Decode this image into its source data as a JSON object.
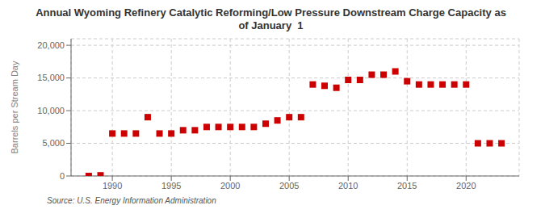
{
  "chart_data": {
    "type": "scatter",
    "title": "Annual Wyoming Refinery Catalytic Reforming/Low Pressure Downstream Charge Capacity as\nof January  1",
    "ylabel": "Barrels per Stream Day",
    "annotations": [
      "Source: U.S. Energy Information Administration"
    ],
    "x": [
      1988,
      1989,
      1990,
      1991,
      1992,
      1993,
      1994,
      1995,
      1996,
      1997,
      1998,
      1999,
      2000,
      2001,
      2002,
      2003,
      2004,
      2005,
      2006,
      2007,
      2008,
      2009,
      2010,
      2011,
      2012,
      2013,
      2014,
      2015,
      2016,
      2017,
      2018,
      2019,
      2020,
      2021,
      2022,
      2023
    ],
    "values": [
      0,
      100,
      6500,
      6500,
      6500,
      9000,
      6500,
      6500,
      7000,
      7000,
      7500,
      7500,
      7500,
      7500,
      7500,
      8000,
      8500,
      9000,
      9000,
      14000,
      13800,
      13500,
      14700,
      14700,
      15500,
      15500,
      16000,
      14500,
      14000,
      14000,
      14000,
      14000,
      14000,
      5000,
      5000,
      5000
    ],
    "color": "#cc0000",
    "marker": "square",
    "xlim": [
      1986.5,
      2024.5
    ],
    "xticks": [
      1990,
      1995,
      2000,
      2005,
      2010,
      2015,
      2020
    ],
    "ylim": [
      0,
      21000
    ],
    "yticks": [
      0,
      {
        "value": 5000,
        "label": "5,000"
      },
      {
        "value": 10000,
        "label": "10,000"
      },
      {
        "value": 15000,
        "label": "15,000"
      },
      {
        "value": 20000,
        "label": "20,000"
      }
    ],
    "grid": true
  }
}
